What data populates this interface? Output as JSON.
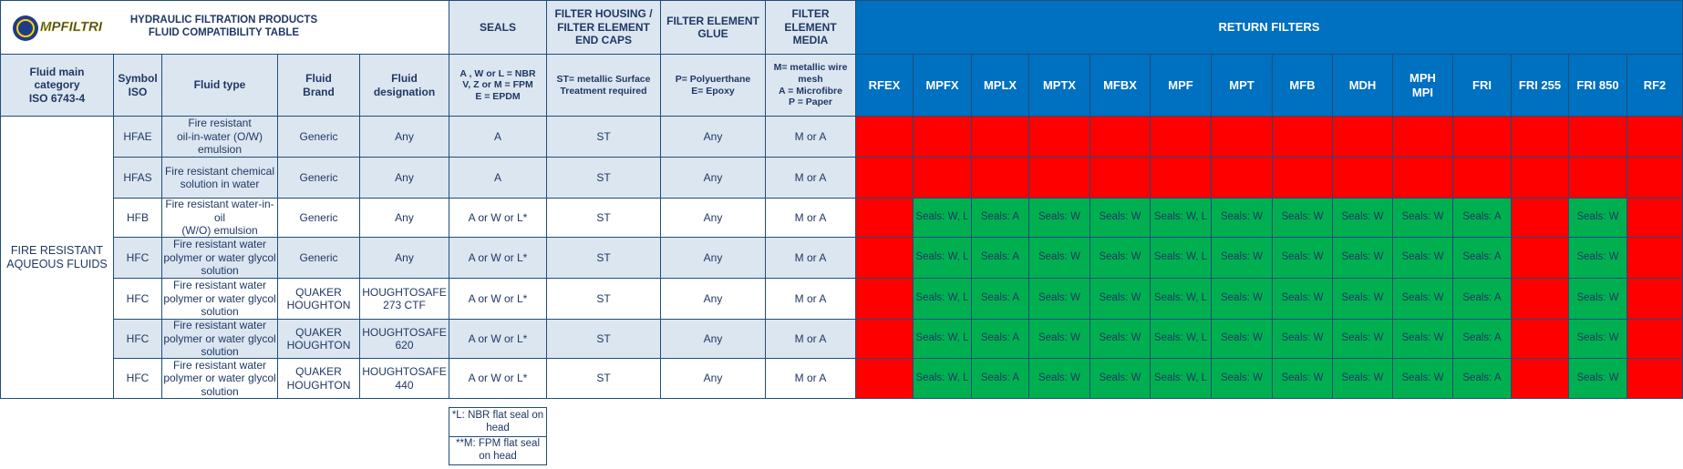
{
  "header": {
    "logo": "MPFILTRI",
    "title": "HYDRAULIC FILTRATION PRODUCTS\nFLUID COMPATIBILITY TABLE",
    "seals": "SEALS",
    "end_caps": "FILTER HOUSING /\nFILTER ELEMENT\nEND CAPS",
    "glue": "FILTER ELEMENT\nGLUE",
    "media": "FILTER\nELEMENT\nMEDIA",
    "return_filters": "RETURN FILTERS"
  },
  "columns": {
    "fixed": [
      "Fluid main\ncategory\nISO 6743-4",
      "Symbol\nISO",
      "Fluid type",
      "Fluid\nBrand",
      "Fluid\ndesignation",
      "A , W or L = NBR\nV, Z or M = FPM\nE = EPDM",
      "ST= metallic Surface\nTreatment required",
      "P= Polyuerthane\nE= Epoxy",
      "M= metallic wire\nmesh\nA = Microfibre\nP = Paper"
    ],
    "filters": [
      "RFEX",
      "MPFX",
      "MPLX",
      "MPTX",
      "MFBX",
      "MPF",
      "MPT",
      "MFB",
      "MDH",
      "MPH\nMPI",
      "FRI",
      "FRI 255",
      "FRI 850",
      "RF2"
    ]
  },
  "table": {
    "category": "FIRE RESISTANT\nAQUEOUS FLUIDS",
    "rows": [
      {
        "cells": [
          "HFAE",
          "Fire resistant\noil-in-water (O/W)\nemulsion",
          "Generic",
          "Any",
          "A",
          "ST",
          "Any",
          "M or A"
        ],
        "filters": [
          null,
          null,
          null,
          null,
          null,
          null,
          null,
          null,
          null,
          null,
          null,
          null,
          null,
          null
        ]
      },
      {
        "cells": [
          "HFAS",
          "Fire resistant chemical\nsolution in water",
          "Generic",
          "Any",
          "A",
          "ST",
          "Any",
          "M or A"
        ],
        "filters": [
          null,
          null,
          null,
          null,
          null,
          null,
          null,
          null,
          null,
          null,
          null,
          null,
          null,
          null
        ]
      },
      {
        "cells": [
          "HFB",
          "Fire resistant water-in-oil\n(W/O) emulsion",
          "Generic",
          "Any",
          "A or W or L*",
          "ST",
          "Any",
          "M or A"
        ],
        "filters": [
          null,
          "Seals: W, L",
          "Seals: A",
          "Seals: W",
          "Seals: W",
          "Seals: W, L",
          "Seals: W",
          "Seals: W",
          "Seals: W",
          "Seals: W",
          "Seals: A",
          null,
          "Seals: W",
          null
        ]
      },
      {
        "cells": [
          "HFC",
          "Fire resistant water\npolymer or water glycol\nsolution",
          "Generic",
          "Any",
          "A or W or L*",
          "ST",
          "Any",
          "M or A"
        ],
        "filters": [
          null,
          "Seals: W, L",
          "Seals: A",
          "Seals: W",
          "Seals: W",
          "Seals: W, L",
          "Seals: W",
          "Seals: W",
          "Seals: W",
          "Seals: W",
          "Seals: A",
          null,
          "Seals: W",
          null
        ]
      },
      {
        "cells": [
          "HFC",
          "Fire resistant water\npolymer or water glycol\nsolution",
          "QUAKER\nHOUGHTON",
          "HOUGHTOSAFE\n273 CTF",
          "A or W or L*",
          "ST",
          "Any",
          "M or A"
        ],
        "filters": [
          null,
          "Seals: W, L",
          "Seals: A",
          "Seals: W",
          "Seals: W",
          "Seals: W, L",
          "Seals: W",
          "Seals: W",
          "Seals: W",
          "Seals: W",
          "Seals: A",
          null,
          "Seals: W",
          null
        ]
      },
      {
        "cells": [
          "HFC",
          "Fire resistant water\npolymer or water glycol\nsolution",
          "QUAKER\nHOUGHTON",
          "HOUGHTOSAFE\n620",
          "A or W or L*",
          "ST",
          "Any",
          "M or A"
        ],
        "filters": [
          null,
          "Seals: W, L",
          "Seals: A",
          "Seals: W",
          "Seals: W",
          "Seals: W, L",
          "Seals: W",
          "Seals: W",
          "Seals: W",
          "Seals: W",
          "Seals: A",
          null,
          "Seals: W",
          null
        ]
      },
      {
        "cells": [
          "HFC",
          "Fire resistant water\npolymer or water glycol\nsolution",
          "QUAKER\nHOUGHTON",
          "HOUGHTOSAFE\n440",
          "A or W or L*",
          "ST",
          "Any",
          "M or A"
        ],
        "filters": [
          null,
          "Seals: W, L",
          "Seals: A",
          "Seals: W",
          "Seals: W",
          "Seals: W, L",
          "Seals: W",
          "Seals: W",
          "Seals: W",
          "Seals: W",
          "Seals: A",
          null,
          "Seals: W",
          null
        ]
      }
    ]
  },
  "footnotes": [
    "*L: NBR flat seal on\nhead",
    "**M: FPM flat seal\non head"
  ],
  "colors": {
    "compatible": "#00b050",
    "incompatible": "#ff0000"
  }
}
